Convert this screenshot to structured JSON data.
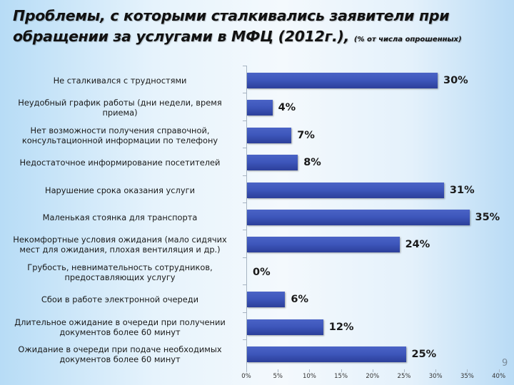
{
  "slide": {
    "title_line1": "Проблемы, с которыми сталкивались заявители при",
    "title_line2": "обращении за услугами в МФЦ (2012г.),",
    "title_note": "(% от числа опрошенных)",
    "page_number": "9"
  },
  "chart_data": {
    "type": "bar",
    "orientation": "horizontal",
    "title": "Проблемы, с которыми сталкивались заявители при обращении за услугами в МФЦ (2012г.), (% от числа опрошенных)",
    "xlabel": "",
    "ylabel": "",
    "xlim": [
      0,
      40
    ],
    "grid": false,
    "legend": null,
    "bar_color": "#3e57bc",
    "categories": [
      "Не сталкивался с трудностями",
      "Неудобный график работы (дни недели, время приема)",
      "Нет возможности получения справочной, консультационной информации по телефону",
      "Недостаточное информирование посетителей",
      "Нарушение срока оказания услуги",
      "Маленькая стоянка для транспорта",
      "Некомфортные  условия ожидания (мало сидячих мест для ожидания, плохая вентиляция и др.)",
      "Грубость, невнимательность сотрудников, предоставляющих услугу",
      "Сбои в работе электронной очереди",
      "Длительное ожидание в очереди при получении документов более 60 минут",
      "Ожидание в очереди при подаче необходимых документов более 60 минут"
    ],
    "values": [
      30,
      4,
      7,
      8,
      31,
      35,
      24,
      0,
      6,
      12,
      25
    ],
    "value_labels": [
      "30%",
      "4%",
      "7%",
      "8%",
      "31%",
      "35%",
      "24%",
      "0%",
      "6%",
      "12%",
      "25%"
    ],
    "x_ticks": [
      "0%",
      "5%",
      "10%",
      "15%",
      "20%",
      "25%",
      "30%",
      "35%",
      "40%"
    ]
  },
  "rows": [
    {
      "label_1": "Не сталкивался с трудностями",
      "label_2": "",
      "value": "30%"
    },
    {
      "label_1": "Неудобный график работы (дни недели, время",
      "label_2": "приема)",
      "value": "4%"
    },
    {
      "label_1": "Нет возможности получения справочной,",
      "label_2": "консультационной информации по телефону",
      "value": "7%"
    },
    {
      "label_1": "Недостаточное информирование посетителей",
      "label_2": "",
      "value": "8%"
    },
    {
      "label_1": "Нарушение срока оказания услуги",
      "label_2": "",
      "value": "31%"
    },
    {
      "label_1": "Маленькая стоянка для транспорта",
      "label_2": "",
      "value": "35%"
    },
    {
      "label_1": "Некомфортные  условия ожидания (мало сидячих",
      "label_2": "мест для ожидания, плохая вентиляция и др.)",
      "value": "24%"
    },
    {
      "label_1": "Грубость, невнимательность сотрудников,",
      "label_2": "предоставляющих услугу",
      "value": "0%"
    },
    {
      "label_1": "Сбои в работе электронной очереди",
      "label_2": "",
      "value": "6%"
    },
    {
      "label_1": "Длительное ожидание в очереди при получении",
      "label_2": "документов более 60 минут",
      "value": "12%"
    },
    {
      "label_1": "Ожидание в очереди при подаче необходимых",
      "label_2": "документов более 60 минут",
      "value": "25%"
    }
  ],
  "axis": {
    "ticks": [
      "0%",
      "5%",
      "10%",
      "15%",
      "20%",
      "25%",
      "30%",
      "35%",
      "40%"
    ]
  }
}
